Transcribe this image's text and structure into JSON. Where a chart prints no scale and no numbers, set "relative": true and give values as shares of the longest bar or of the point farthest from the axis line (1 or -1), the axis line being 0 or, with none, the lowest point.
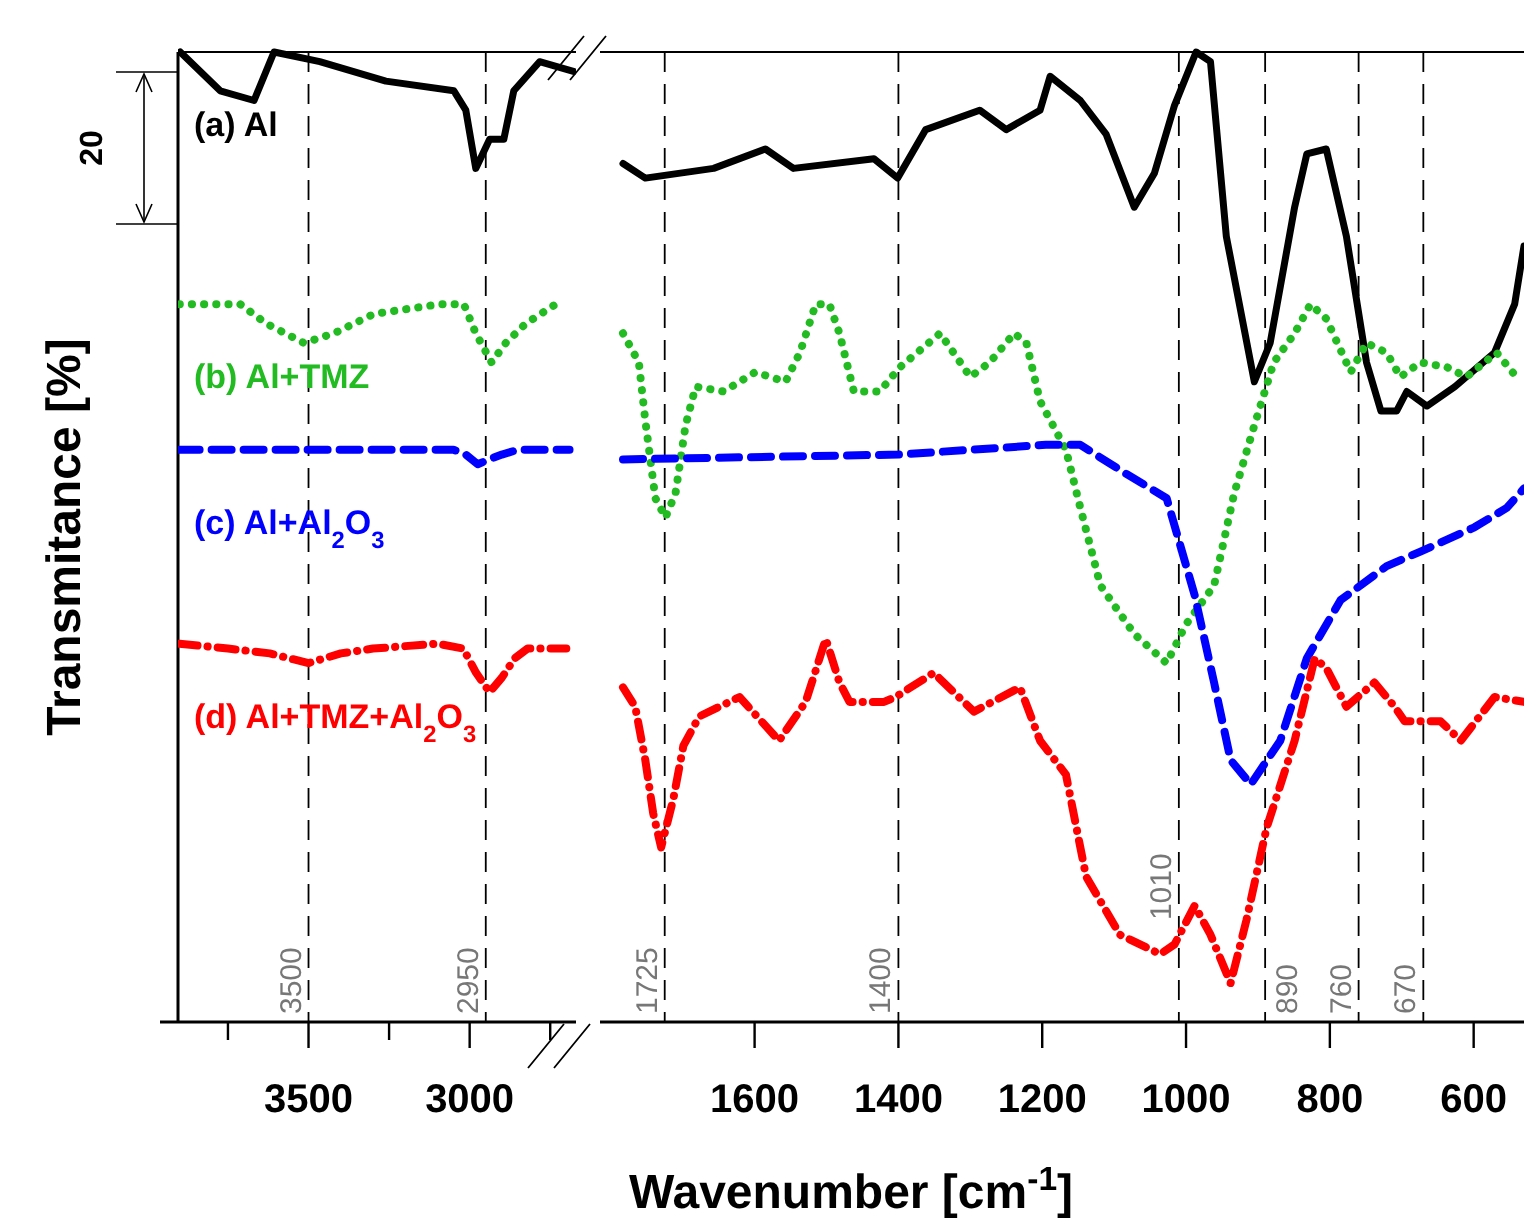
{
  "chart_data": [
    {
      "type": "line",
      "relative": true,
      "ylabel": "Transmitance [%]",
      "annotations": [
        "20"
      ],
      "xlim": [
        3905,
        2670
      ],
      "xticks": [
        {
          "value": 3750,
          "label": null
        },
        3500,
        {
          "value": 3250,
          "label": null
        },
        3000,
        {
          "value": 2750,
          "label": null
        }
      ],
      "ref_lines": [
        {
          "axis": "x",
          "value": 3500,
          "label": "3500",
          "line_style": "dashed",
          "color": "#000000"
        },
        {
          "axis": "x",
          "value": 2950,
          "label": "2950",
          "line_style": "dashed",
          "color": "#000000"
        }
      ],
      "series": [
        {
          "name": "(a) Al",
          "color": "#000000",
          "line_style": "solid",
          "x": [
            3898,
            3774,
            3669,
            3607,
            3465,
            3260,
            3049,
            3012,
            2981,
            2938,
            2894,
            2863,
            2783,
            2678
          ],
          "values": [
            1.0,
            0.96,
            0.95,
            1.0,
            0.99,
            0.97,
            0.96,
            0.94,
            0.88,
            0.91,
            0.91,
            0.96,
            0.99,
            0.98
          ]
        },
        {
          "name": "(b) Al+TMZ",
          "color": "#22bb22",
          "line_style": "dotted",
          "x": [
            3900,
            3712,
            3631,
            3514,
            3421,
            3297,
            3093,
            3018,
            2981,
            2932,
            2888,
            2826,
            2733
          ],
          "values": [
            0.74,
            0.74,
            0.72,
            0.7,
            0.71,
            0.73,
            0.74,
            0.74,
            0.71,
            0.68,
            0.7,
            0.72,
            0.74
          ]
        },
        {
          "name": "(c) Al+Al$_{2}$O$_{3}$",
          "color": "#0000ff",
          "line_style": "dashed",
          "x": [
            3900,
            3500,
            3050,
            3012,
            2975,
            2940,
            2900,
            2850,
            2690
          ],
          "values": [
            0.59,
            0.59,
            0.59,
            0.585,
            0.575,
            0.58,
            0.585,
            0.59,
            0.59
          ]
        },
        {
          "name": "(d) Al+TMZ+Al$_{2}$O$_{3}$",
          "color": "#ff0000",
          "line_style": "dashdot",
          "x": [
            3900,
            3750,
            3620,
            3500,
            3400,
            3300,
            3100,
            3020,
            2980,
            2938,
            2900,
            2860,
            2820,
            2700
          ],
          "values": [
            0.39,
            0.385,
            0.38,
            0.37,
            0.38,
            0.385,
            0.39,
            0.385,
            0.36,
            0.34,
            0.355,
            0.375,
            0.385,
            0.385
          ]
        }
      ]
    },
    {
      "type": "line",
      "relative": true,
      "xlabel": "Wavenumber [cm$^{-1}$]",
      "xlim": [
        1815,
        530
      ],
      "xticks": [
        1600,
        1400,
        1200,
        1000,
        800,
        600
      ],
      "ref_lines": [
        {
          "axis": "x",
          "value": 1725,
          "label": "1725",
          "line_style": "dashed",
          "color": "#000000"
        },
        {
          "axis": "x",
          "value": 1400,
          "label": "1400",
          "line_style": "dashed",
          "color": "#000000"
        },
        {
          "axis": "x",
          "value": 1010,
          "label": "1010",
          "line_style": "dashed",
          "color": "#000000"
        },
        {
          "axis": "x",
          "value": 890,
          "label": "890",
          "line_style": "dashed",
          "color": "#000000"
        },
        {
          "axis": "x",
          "value": 760,
          "label": "760",
          "line_style": "dashed",
          "color": "#000000"
        },
        {
          "axis": "x",
          "value": 670,
          "label": "670",
          "line_style": "dashed",
          "color": "#000000"
        }
      ],
      "series": [
        {
          "color": "#000000",
          "line_style": "solid",
          "x": [
            1783,
            1752,
            1657,
            1585,
            1546,
            1434,
            1401,
            1362,
            1287,
            1250,
            1203,
            1189,
            1147,
            1111,
            1072,
            1044,
            1016,
            986,
            966,
            944,
            905,
            883,
            849,
            832,
            805,
            777,
            749,
            729,
            707,
            693,
            665,
            626,
            571,
            543,
            530
          ],
          "values": [
            0.885,
            0.87,
            0.88,
            0.9,
            0.88,
            0.89,
            0.87,
            0.92,
            0.94,
            0.92,
            0.94,
            0.975,
            0.95,
            0.915,
            0.84,
            0.875,
            0.945,
            1.0,
            0.99,
            0.81,
            0.66,
            0.7,
            0.84,
            0.895,
            0.9,
            0.81,
            0.68,
            0.63,
            0.63,
            0.65,
            0.635,
            0.655,
            0.69,
            0.74,
            0.8
          ]
        },
        {
          "color": "#22bb22",
          "line_style": "dotted",
          "x": [
            1783,
            1761,
            1752,
            1738,
            1724,
            1710,
            1696,
            1682,
            1643,
            1599,
            1557,
            1537,
            1515,
            1496,
            1482,
            1462,
            1426,
            1398,
            1342,
            1300,
            1273,
            1239,
            1222,
            1203,
            1167,
            1147,
            1119,
            1072,
            1027,
            1000,
            961,
            933,
            905,
            878,
            849,
            827,
            805,
            771,
            749,
            721,
            702,
            674,
            637,
            610,
            568,
            535
          ],
          "values": [
            0.71,
            0.68,
            0.62,
            0.54,
            0.52,
            0.545,
            0.615,
            0.655,
            0.65,
            0.67,
            0.66,
            0.69,
            0.74,
            0.74,
            0.71,
            0.65,
            0.65,
            0.675,
            0.71,
            0.665,
            0.68,
            0.71,
            0.7,
            0.64,
            0.59,
            0.53,
            0.45,
            0.4,
            0.37,
            0.41,
            0.45,
            0.545,
            0.615,
            0.68,
            0.71,
            0.74,
            0.725,
            0.67,
            0.7,
            0.69,
            0.665,
            0.68,
            0.675,
            0.665,
            0.69,
            0.66
          ]
        },
        {
          "color": "#0000ff",
          "line_style": "dashed",
          "x": [
            1783,
            1400,
            1195,
            1147,
            1083,
            1027,
            988,
            961,
            938,
            910,
            869,
            832,
            785,
            721,
            674,
            599,
            554,
            530
          ],
          "values": [
            0.58,
            0.585,
            0.595,
            0.595,
            0.565,
            0.54,
            0.44,
            0.35,
            0.27,
            0.245,
            0.29,
            0.375,
            0.435,
            0.47,
            0.485,
            0.51,
            0.53,
            0.55
          ]
        },
        {
          "color": "#ff0000",
          "line_style": "dashdot",
          "x": [
            1783,
            1766,
            1752,
            1741,
            1730,
            1713,
            1699,
            1677,
            1621,
            1566,
            1529,
            1501,
            1482,
            1468,
            1420,
            1404,
            1351,
            1295,
            1231,
            1203,
            1167,
            1139,
            1092,
            1036,
            1016,
            988,
            966,
            938,
            916,
            888,
            849,
            821,
            805,
            777,
            738,
            710,
            696,
            679,
            646,
            618,
            571,
            530
          ],
          "values": [
            0.345,
            0.325,
            0.27,
            0.215,
            0.18,
            0.23,
            0.285,
            0.315,
            0.335,
            0.29,
            0.33,
            0.395,
            0.35,
            0.33,
            0.33,
            0.335,
            0.36,
            0.32,
            0.345,
            0.29,
            0.255,
            0.15,
            0.09,
            0.07,
            0.08,
            0.12,
            0.09,
            0.04,
            0.105,
            0.2,
            0.29,
            0.375,
            0.365,
            0.325,
            0.35,
            0.325,
            0.31,
            0.31,
            0.31,
            0.29,
            0.335,
            0.33
          ]
        }
      ]
    }
  ]
}
